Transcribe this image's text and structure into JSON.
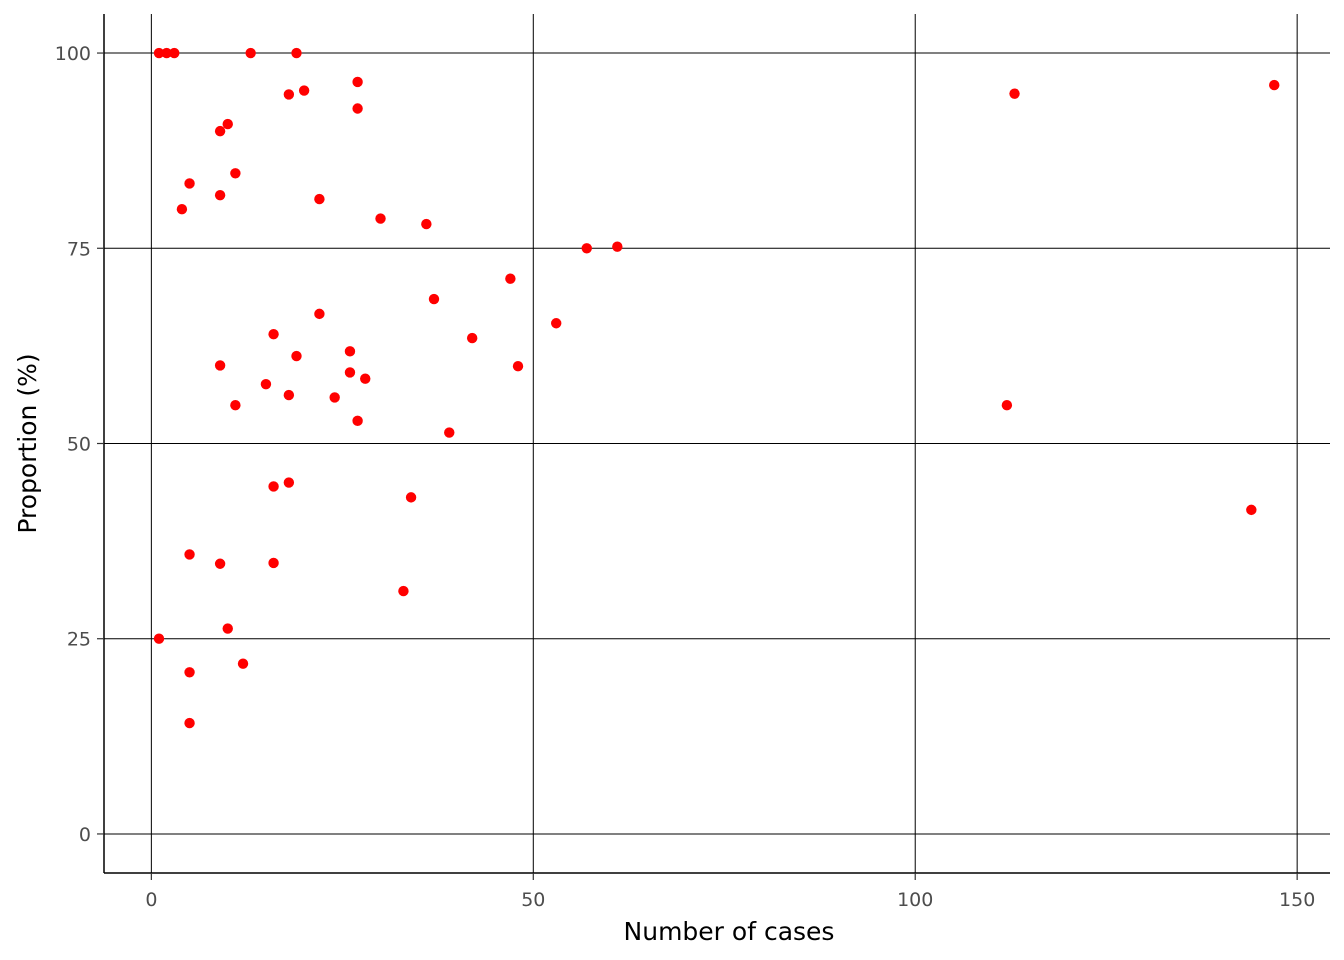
{
  "chart_data": {
    "type": "scatter",
    "title": "",
    "xlabel": "Number of cases",
    "ylabel": "Proportion (%)",
    "xlim": [
      -6.2,
      154.3
    ],
    "ylim": [
      -5,
      105
    ],
    "x_ticks": [
      0,
      50,
      100,
      150
    ],
    "y_ticks": [
      0,
      25,
      50,
      75,
      100
    ],
    "x_tick_labels": [
      "0",
      "50",
      "100",
      "150"
    ],
    "y_tick_labels": [
      "0",
      "25",
      "50",
      "75",
      "100"
    ],
    "grid": true,
    "legend": "none",
    "point_color": "#ff0000",
    "points": [
      {
        "x": 1,
        "y": 100
      },
      {
        "x": 2,
        "y": 100
      },
      {
        "x": 3,
        "y": 100
      },
      {
        "x": 13,
        "y": 100
      },
      {
        "x": 19,
        "y": 100
      },
      {
        "x": 27,
        "y": 96.3
      },
      {
        "x": 18,
        "y": 94.7
      },
      {
        "x": 20,
        "y": 95.2
      },
      {
        "x": 27,
        "y": 92.9
      },
      {
        "x": 10,
        "y": 90.9
      },
      {
        "x": 9,
        "y": 90.0
      },
      {
        "x": 11,
        "y": 84.6
      },
      {
        "x": 5,
        "y": 83.3
      },
      {
        "x": 9,
        "y": 81.8
      },
      {
        "x": 22,
        "y": 81.3
      },
      {
        "x": 4,
        "y": 80.0
      },
      {
        "x": 30,
        "y": 78.8
      },
      {
        "x": 36,
        "y": 78.1
      },
      {
        "x": 57,
        "y": 75.0
      },
      {
        "x": 61,
        "y": 75.2
      },
      {
        "x": 47,
        "y": 71.1
      },
      {
        "x": 37,
        "y": 68.5
      },
      {
        "x": 22,
        "y": 66.6
      },
      {
        "x": 53,
        "y": 65.4
      },
      {
        "x": 16,
        "y": 64.0
      },
      {
        "x": 42,
        "y": 63.5
      },
      {
        "x": 26,
        "y": 61.8
      },
      {
        "x": 19,
        "y": 61.2
      },
      {
        "x": 9,
        "y": 60.0
      },
      {
        "x": 48,
        "y": 59.9
      },
      {
        "x": 26,
        "y": 59.1
      },
      {
        "x": 28,
        "y": 58.3
      },
      {
        "x": 15,
        "y": 57.6
      },
      {
        "x": 18,
        "y": 56.2
      },
      {
        "x": 24,
        "y": 55.9
      },
      {
        "x": 11,
        "y": 54.9
      },
      {
        "x": 27,
        "y": 52.9
      },
      {
        "x": 39,
        "y": 51.4
      },
      {
        "x": 18,
        "y": 45.0
      },
      {
        "x": 16,
        "y": 44.5
      },
      {
        "x": 34,
        "y": 43.1
      },
      {
        "x": 5,
        "y": 35.8
      },
      {
        "x": 9,
        "y": 34.6
      },
      {
        "x": 16,
        "y": 34.7
      },
      {
        "x": 33,
        "y": 31.1
      },
      {
        "x": 10,
        "y": 26.3
      },
      {
        "x": 1,
        "y": 25.0
      },
      {
        "x": 12,
        "y": 21.8
      },
      {
        "x": 5,
        "y": 20.7
      },
      {
        "x": 5,
        "y": 14.2
      },
      {
        "x": 113,
        "y": 94.8
      },
      {
        "x": 147,
        "y": 95.9
      },
      {
        "x": 112,
        "y": 54.9
      },
      {
        "x": 144,
        "y": 41.5
      }
    ]
  }
}
